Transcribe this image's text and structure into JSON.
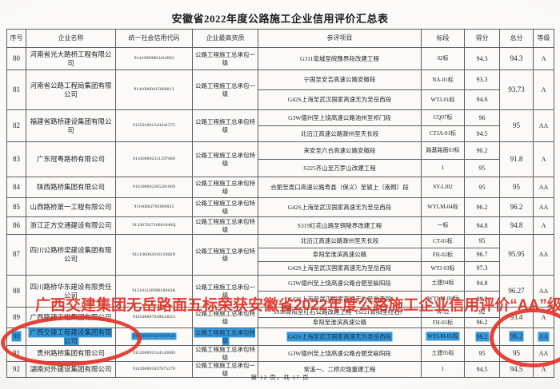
{
  "page": {
    "title": "安徽省2022年度公路施工企业信用评价汇总表",
    "footer": "第 12 页，共 17 页"
  },
  "table": {
    "columns": [
      "序号",
      "企业名称",
      "统一社会信用代码",
      "企业最高资质",
      "参评项目",
      "标段",
      "得分",
      "总分",
      "等级"
    ],
    "rows": [
      {
        "no": "80",
        "name": "河南省光大路桥工程有限公司",
        "code": "9141090086341686J",
        "qualification": "公路工程施工总承包一级",
        "projects": [
          {
            "name": "G311亳城至皖豫界段改建工程",
            "section": "02标",
            "score": "94.3"
          }
        ],
        "total": "94.3",
        "grade": "A",
        "highlighted": false
      },
      {
        "no": "81",
        "name": "河南省公路工程局集团有限公司",
        "code": "91410000415800013",
        "qualification": "公路工程施工总承包一级",
        "projects": [
          {
            "name": "宁国至安吉高速公路安徽段",
            "section": "NA-01标",
            "score": "93.3"
          },
          {
            "name": "G42S上海至武汉国家高速无为至岳西段",
            "section": "WTJ-01标",
            "score": "94.6"
          }
        ],
        "total": "93.73",
        "grade": "A",
        "highlighted": false
      },
      {
        "no": "82",
        "name": "福建省路桥建设集团有限公司",
        "code": "913501001544441575",
        "qualification": "公路工程施工总承包特级",
        "projects": [
          {
            "name": "G3W德州至上饶高速公路池州至祁门段",
            "section": "CQ07标",
            "score": "96"
          },
          {
            "name": "北沿江高速公路滁州至天长段",
            "section": "CTJA-01标",
            "score": "94.5"
          }
        ],
        "total": "95",
        "grade": "AA",
        "highlighted": false
      },
      {
        "no": "83",
        "name": "广东冠粤路桥有限公司",
        "code": "914400002311297680",
        "qualification": "公路工程施工总承包特级",
        "projects": [
          {
            "name": "来安至六合高速公路安徽段",
            "section": "路基路面03标",
            "score": "90.2"
          },
          {
            "name": "S225齐山至万罗山改建工程",
            "section": "1",
            "score": "95"
          }
        ],
        "total": "91.8",
        "grade": "A",
        "highlighted": false
      },
      {
        "no": "84",
        "name": "陕西路桥集团有限公司",
        "code": "616100002205281069",
        "qualification": "公路工程施工总承包特级",
        "projects": [
          {
            "name": "合肥至周口高速公路寿县（保义）至颍上（南照）段",
            "section": "SY-LJ02",
            "score": "95"
          }
        ],
        "total": "95",
        "grade": "AA",
        "highlighted": false
      },
      {
        "no": "85",
        "name": "山西路桥第一工程有限公司",
        "code": "91100002782009055",
        "qualification": "公路工程施工总承包特级",
        "projects": [
          {
            "name": "G42S上海至武汉国家高速无为至岳西段",
            "section": "WYLM-04标",
            "score": "96.2"
          }
        ],
        "total": "96.2",
        "grade": "AA",
        "highlighted": false
      },
      {
        "no": "86",
        "name": "浙江正方交通建设有限公司",
        "code": "91330702726601040Q",
        "qualification": "公路工程施工总承包特级",
        "projects": [
          {
            "name": "S319红花山路至铜陵界改建工程",
            "section": "一标",
            "score": "94.8"
          }
        ],
        "total": "94.8",
        "grade": "A",
        "highlighted": false
      },
      {
        "no": "87",
        "name": "四川公路桥梁建设集团有限公司",
        "code": "91510000201811900N",
        "qualification": "公路工程施工总承包特级",
        "projects": [
          {
            "name": "北沿江高速公路滁州至天长段",
            "section": "CT-01标",
            "score": "95"
          },
          {
            "name": "阜阳至淮滨高速公路",
            "section": "FH-02标",
            "score": "96.7"
          },
          {
            "name": "G42S上海至武汉国家高速无为至岳西段",
            "section": "WTJ-03标",
            "score": "97.3"
          }
        ],
        "total": "95.95",
        "grade": "AA",
        "highlighted": false
      },
      {
        "no": "88",
        "name": "四川路桥华东建设有限责任公司",
        "code": "91510122098859063K",
        "qualification": "公路工程施工总承包一级",
        "projects": [
          {
            "name": "G3W德州至上饶高速公路合肥至枞阳段",
            "section": "土建04标",
            "score": "94.8"
          },
          {
            "name": "G42S上海至武汉国家高速无为至岳西段",
            "section": "WYLM-06标",
            "score": "99.2"
          }
        ],
        "total": "96.27",
        "grade": "AA",
        "highlighted": false
      },
      {
        "no": "89",
        "name": "广西路建工程集团有限公司",
        "code": "914500007638624023",
        "qualification": "公路工程施工总承包特级",
        "projects": [
          {
            "name": "S358青阳至红石公路改建工程（S221青阳至红石）",
            "section": "W-12",
            "score": "92"
          },
          {
            "name": "阜阳至淮滨高速公路",
            "section": "FH-01标",
            "score": "96.2"
          }
        ],
        "total": "93.4",
        "grade": "A",
        "highlighted": false
      },
      {
        "no": "90",
        "name": "广西交建工程建设集团有限公司",
        "code": "914500007420709040",
        "qualification": "公路工程施工总承包特级",
        "projects": [
          {
            "name": "G42S上海至武汉国家高速无为至岳西段",
            "section": "WYLM-05标",
            "score": "96.2"
          }
        ],
        "total": "96.2",
        "grade": "AA",
        "highlighted": true
      },
      {
        "no": "91",
        "name": "贵州路桥集团有限公司",
        "code": "915200002144143080",
        "qualification": "公路工程施工总承包特级",
        "projects": [
          {
            "name": "G3W德州至上饶高速公路合肥至枞阳段",
            "section": "土建05标",
            "score": "95"
          }
        ],
        "total": "95",
        "grade": "AA",
        "highlighted": false
      },
      {
        "no": "92",
        "name": "湖南对外建设集团有限公司",
        "code": "914300001837675278",
        "qualification": "公路工程施工总承包一级",
        "projects": [
          {
            "name": "常溪一、二桥灾毁重建工程",
            "section": "1",
            "score": "94.5"
          }
        ],
        "total": "94.5",
        "grade": "A",
        "highlighted": false
      }
    ]
  },
  "overlay": {
    "banner_text": "广西交建集团无岳路面五标荣获安徽省2022年度公路施工企业信用评价“AA”级荣誉",
    "banner_color": "#de3428",
    "circle_color": "#e32f25",
    "highlight_color": "#3798d8"
  }
}
